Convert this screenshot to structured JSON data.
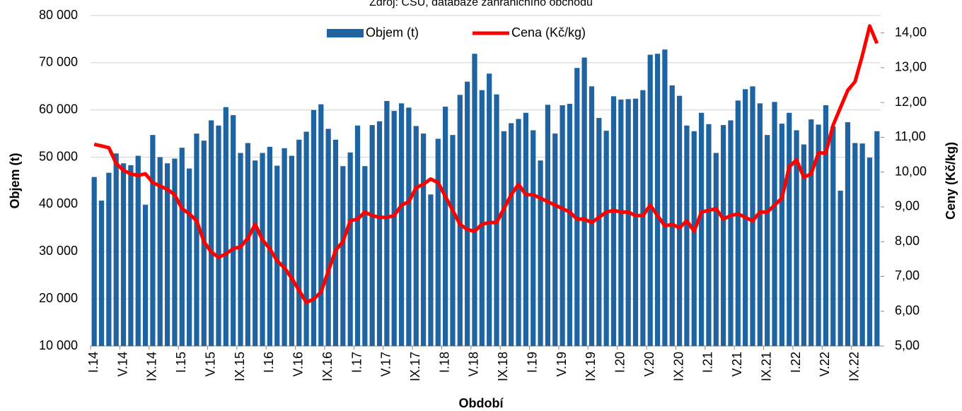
{
  "chart_data": {
    "type": "bar_line",
    "title": "Zdroj: ČSÚ, databáze zahraničního obchodu",
    "x_label": "Období",
    "y_label": "Objem (t)",
    "y2_label": "Ceny (Kč/kg)",
    "categories": [
      "I.14",
      null,
      null,
      null,
      "V.14",
      null,
      null,
      null,
      "IX.14",
      null,
      null,
      null,
      "I.15",
      null,
      null,
      null,
      "V.15",
      null,
      null,
      null,
      "IX.15",
      null,
      null,
      null,
      "I.16",
      null,
      null,
      null,
      "V.16",
      null,
      null,
      null,
      "IX.16",
      null,
      null,
      null,
      "I.17",
      null,
      null,
      null,
      "V.17",
      null,
      null,
      null,
      "IX.17",
      null,
      null,
      null,
      "I.18",
      null,
      null,
      null,
      "V.18",
      null,
      null,
      null,
      "IX.18",
      null,
      null,
      null,
      "I.19",
      null,
      null,
      null,
      "V.19",
      null,
      null,
      null,
      "IX.19",
      null,
      null,
      null,
      "I.20",
      null,
      null,
      null,
      "V.20",
      null,
      null,
      null,
      "IX.20",
      null,
      null,
      null,
      "I.21",
      null,
      null,
      null,
      "V.21",
      null,
      null,
      null,
      "IX.21",
      null,
      null,
      null,
      "I.22",
      null,
      null,
      null,
      "V.22",
      null,
      null,
      null,
      "IX.22",
      null,
      null,
      null
    ],
    "series": [
      {
        "name": "Objem (t)",
        "type": "bar",
        "color": "#1f64a0",
        "values": [
          45800,
          40800,
          46700,
          50800,
          48700,
          48300,
          50300,
          39900,
          54700,
          50000,
          48700,
          49700,
          52000,
          47600,
          55000,
          53500,
          57800,
          56700,
          60600,
          58900,
          50900,
          53000,
          49300,
          50900,
          52200,
          48200,
          51900,
          50300,
          53700,
          55400,
          60000,
          61200,
          56000,
          53700,
          48100,
          51000,
          56700,
          48100,
          56800,
          57600,
          61900,
          59800,
          61400,
          60500,
          56600,
          55000,
          42100,
          53900,
          60700,
          54700,
          63200,
          66000,
          71900,
          64200,
          67700,
          63300,
          55500,
          57200,
          58100,
          59400,
          55700,
          49300,
          61100,
          55000,
          61000,
          61300,
          68900,
          71100,
          65000,
          58300,
          55600,
          62900,
          62200,
          62300,
          62400,
          64200,
          71700,
          71900,
          72800,
          65200,
          63000,
          56700,
          55500,
          59400,
          57000,
          50900,
          56800,
          57800,
          62000,
          64400,
          65000,
          61400,
          54700,
          61700,
          57100,
          59400,
          55700,
          52700,
          58000,
          56900,
          61000,
          56500,
          42900,
          57400,
          53000,
          52900,
          49900,
          55500
        ]
      },
      {
        "name": "Cena (Kč/kg)",
        "type": "line",
        "axis": "y2",
        "color": "#ff0000",
        "values": [
          10.8,
          10.75,
          10.7,
          10.25,
          10.05,
          9.95,
          9.9,
          9.95,
          9.7,
          9.6,
          9.5,
          9.35,
          8.95,
          8.8,
          8.6,
          8.0,
          7.7,
          7.55,
          7.65,
          7.8,
          7.85,
          8.1,
          8.5,
          8.05,
          7.8,
          7.45,
          7.25,
          6.95,
          6.6,
          6.25,
          6.35,
          6.55,
          7.15,
          7.75,
          8.0,
          8.6,
          8.65,
          8.85,
          8.75,
          8.7,
          8.7,
          8.75,
          9.05,
          9.15,
          9.55,
          9.65,
          9.8,
          9.7,
          9.3,
          8.9,
          8.5,
          8.35,
          8.3,
          8.5,
          8.55,
          8.55,
          8.95,
          9.35,
          9.65,
          9.35,
          9.35,
          9.25,
          9.15,
          9.05,
          8.95,
          8.85,
          8.65,
          8.65,
          8.55,
          8.7,
          8.85,
          8.9,
          8.85,
          8.85,
          8.75,
          8.75,
          9.05,
          8.75,
          8.45,
          8.5,
          8.4,
          8.6,
          8.3,
          8.85,
          8.9,
          8.95,
          8.65,
          8.75,
          8.8,
          8.7,
          8.6,
          8.85,
          8.85,
          9.05,
          9.25,
          10.15,
          10.35,
          9.85,
          9.95,
          10.55,
          10.55,
          11.35,
          11.85,
          12.35,
          12.6,
          13.35,
          14.2,
          13.7
        ]
      }
    ],
    "ylim": [
      10000,
      80000
    ],
    "yticks": [
      {
        "value": 10000,
        "label": "10 000"
      },
      {
        "value": 20000,
        "label": "20 000"
      },
      {
        "value": 30000,
        "label": "30 000"
      },
      {
        "value": 40000,
        "label": "40 000"
      },
      {
        "value": 50000,
        "label": "50 000"
      },
      {
        "value": 60000,
        "label": "60 000"
      },
      {
        "value": 70000,
        "label": "70 000"
      },
      {
        "value": 80000,
        "label": "80 000"
      }
    ],
    "y2lim": [
      5,
      14.5
    ],
    "y2ticks": [
      {
        "value": 5,
        "label": "5,00"
      },
      {
        "value": 6,
        "label": "6,00"
      },
      {
        "value": 7,
        "label": "7,00"
      },
      {
        "value": 8,
        "label": "8,00"
      },
      {
        "value": 9,
        "label": "9,00"
      },
      {
        "value": 10,
        "label": "10,00"
      },
      {
        "value": 11,
        "label": "11,00"
      },
      {
        "value": 12,
        "label": "12,00"
      },
      {
        "value": 13,
        "label": "13,00"
      },
      {
        "value": 14,
        "label": "14,00"
      }
    ],
    "grid": true
  }
}
